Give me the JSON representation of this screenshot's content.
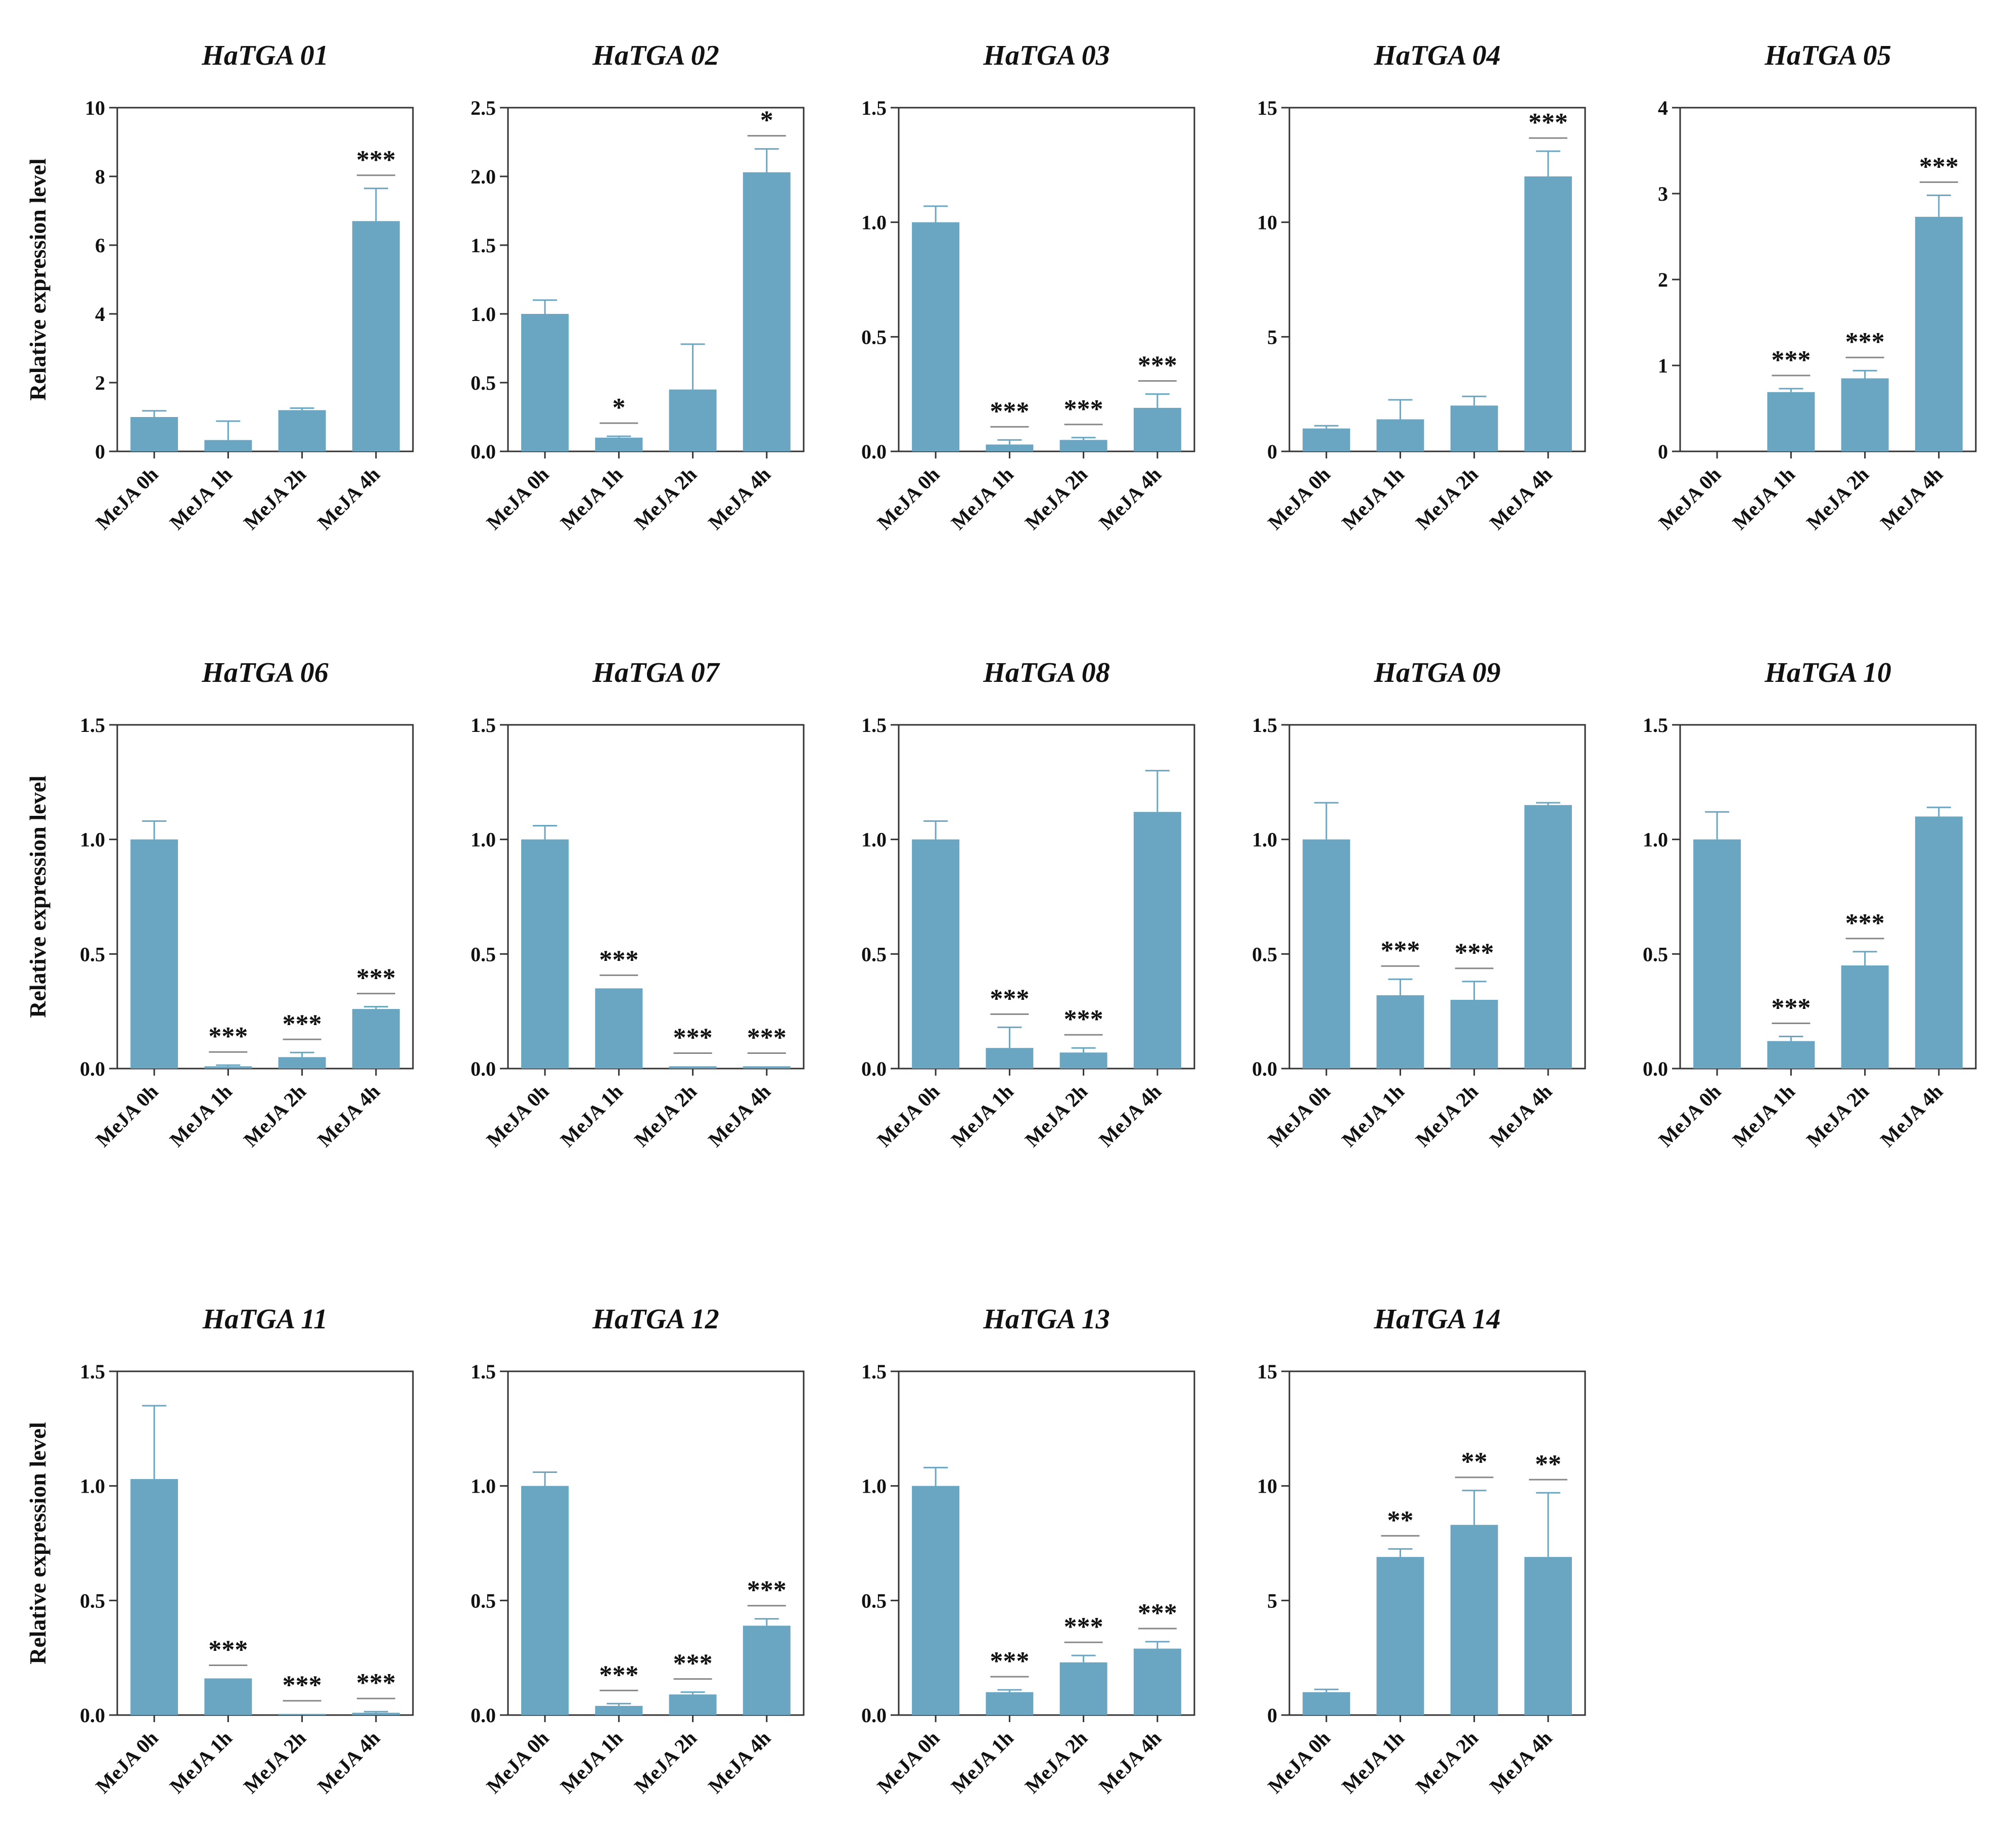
{
  "figure": {
    "y_axis_label": "Relative expression level",
    "bar_color": "#6aa6c2",
    "err_color": "#6aa6c2",
    "axis_color": "#333333",
    "sig_line_color": "#888888"
  },
  "chart_data": [
    {
      "type": "bar",
      "title": "HaTGA 01",
      "categories": [
        "MeJA 0h",
        "MeJA 1h",
        "MeJA 2h",
        "MeJA 4h"
      ],
      "values": [
        1.0,
        0.33,
        1.2,
        6.7
      ],
      "errors": [
        0.18,
        0.55,
        0.06,
        0.95
      ],
      "significance": [
        "",
        "",
        "",
        "***"
      ],
      "ylim": [
        0,
        10
      ],
      "yticks": [
        "0",
        "2",
        "4",
        "6",
        "8",
        "10"
      ]
    },
    {
      "type": "bar",
      "title": "HaTGA 02",
      "categories": [
        "MeJA 0h",
        "MeJA 1h",
        "MeJA 2h",
        "MeJA 4h"
      ],
      "values": [
        1.0,
        0.1,
        0.45,
        2.03
      ],
      "errors": [
        0.1,
        0.01,
        0.33,
        0.17
      ],
      "significance": [
        "",
        "*",
        "",
        "*"
      ],
      "ylim": [
        0,
        2.5
      ],
      "yticks": [
        "0.0",
        "0.5",
        "1.0",
        "1.5",
        "2.0",
        "2.5"
      ]
    },
    {
      "type": "bar",
      "title": "HaTGA 03",
      "categories": [
        "MeJA 0h",
        "MeJA 1h",
        "MeJA 2h",
        "MeJA 4h"
      ],
      "values": [
        1.0,
        0.03,
        0.05,
        0.19
      ],
      "errors": [
        0.07,
        0.02,
        0.01,
        0.06
      ],
      "significance": [
        "",
        "***",
        "***",
        "***"
      ],
      "ylim": [
        0,
        1.5
      ],
      "yticks": [
        "0.0",
        "0.5",
        "1.0",
        "1.5"
      ]
    },
    {
      "type": "bar",
      "title": "HaTGA 04",
      "categories": [
        "MeJA 0h",
        "MeJA 1h",
        "MeJA 2h",
        "MeJA 4h"
      ],
      "values": [
        1.0,
        1.4,
        2.0,
        12.0
      ],
      "errors": [
        0.12,
        0.85,
        0.4,
        1.1
      ],
      "significance": [
        "",
        "",
        "",
        "***"
      ],
      "ylim": [
        0,
        15
      ],
      "yticks": [
        "0",
        "5",
        "10",
        "15"
      ]
    },
    {
      "type": "bar",
      "title": "HaTGA 05",
      "categories": [
        "MeJA 0h",
        "MeJA 1h",
        "MeJA 2h",
        "MeJA 4h"
      ],
      "values": [
        0.0,
        0.69,
        0.85,
        2.73
      ],
      "errors": [
        0.0,
        0.04,
        0.09,
        0.25
      ],
      "significance": [
        "",
        "***",
        "***",
        "***"
      ],
      "ylim": [
        0,
        4
      ],
      "yticks": [
        "0",
        "1",
        "2",
        "3",
        "4"
      ]
    },
    {
      "type": "bar",
      "title": "HaTGA 06",
      "categories": [
        "MeJA 0h",
        "MeJA 1h",
        "MeJA 2h",
        "MeJA 4h"
      ],
      "values": [
        1.0,
        0.01,
        0.05,
        0.26
      ],
      "errors": [
        0.08,
        0.005,
        0.02,
        0.01
      ],
      "significance": [
        "",
        "***",
        "***",
        "***"
      ],
      "ylim": [
        0,
        1.5
      ],
      "yticks": [
        "0.0",
        "0.5",
        "1.0",
        "1.5"
      ]
    },
    {
      "type": "bar",
      "title": "HaTGA 07",
      "categories": [
        "MeJA 0h",
        "MeJA 1h",
        "MeJA 2h",
        "MeJA 4h"
      ],
      "values": [
        1.0,
        0.35,
        0.01,
        0.01
      ],
      "errors": [
        0.06,
        0.0,
        0.0,
        0.0
      ],
      "significance": [
        "",
        "***",
        "***",
        "***"
      ],
      "ylim": [
        0,
        1.5
      ],
      "yticks": [
        "0.0",
        "0.5",
        "1.0",
        "1.5"
      ]
    },
    {
      "type": "bar",
      "title": "HaTGA 08",
      "categories": [
        "MeJA 0h",
        "MeJA 1h",
        "MeJA 2h",
        "MeJA 4h"
      ],
      "values": [
        1.0,
        0.09,
        0.07,
        1.12
      ],
      "errors": [
        0.08,
        0.09,
        0.02,
        0.18
      ],
      "significance": [
        "",
        "***",
        "***",
        ""
      ],
      "ylim": [
        0,
        1.5
      ],
      "yticks": [
        "0.0",
        "0.5",
        "1.0",
        "1.5"
      ]
    },
    {
      "type": "bar",
      "title": "HaTGA 09",
      "categories": [
        "MeJA 0h",
        "MeJA 1h",
        "MeJA 2h",
        "MeJA 4h"
      ],
      "values": [
        1.0,
        0.32,
        0.3,
        1.15
      ],
      "errors": [
        0.16,
        0.07,
        0.08,
        0.01
      ],
      "significance": [
        "",
        "***",
        "***",
        ""
      ],
      "ylim": [
        0,
        1.5
      ],
      "yticks": [
        "0.0",
        "0.5",
        "1.0",
        "1.5"
      ]
    },
    {
      "type": "bar",
      "title": "HaTGA 10",
      "categories": [
        "MeJA 0h",
        "MeJA 1h",
        "MeJA 2h",
        "MeJA 4h"
      ],
      "values": [
        1.0,
        0.12,
        0.45,
        1.1
      ],
      "errors": [
        0.12,
        0.02,
        0.06,
        0.04
      ],
      "significance": [
        "",
        "***",
        "***",
        ""
      ],
      "ylim": [
        0,
        1.5
      ],
      "yticks": [
        "0.0",
        "0.5",
        "1.0",
        "1.5"
      ]
    },
    {
      "type": "bar",
      "title": "HaTGA 11",
      "categories": [
        "MeJA 0h",
        "MeJA 1h",
        "MeJA 2h",
        "MeJA 4h"
      ],
      "values": [
        1.03,
        0.16,
        0.005,
        0.01
      ],
      "errors": [
        0.32,
        0.0,
        0.0,
        0.005
      ],
      "significance": [
        "",
        "***",
        "***",
        "***"
      ],
      "ylim": [
        0,
        1.5
      ],
      "yticks": [
        "0.0",
        "0.5",
        "1.0",
        "1.5"
      ]
    },
    {
      "type": "bar",
      "title": "HaTGA 12",
      "categories": [
        "MeJA 0h",
        "MeJA 1h",
        "MeJA 2h",
        "MeJA 4h"
      ],
      "values": [
        1.0,
        0.04,
        0.09,
        0.39
      ],
      "errors": [
        0.06,
        0.01,
        0.01,
        0.03
      ],
      "significance": [
        "",
        "***",
        "***",
        "***"
      ],
      "ylim": [
        0,
        1.5
      ],
      "yticks": [
        "0.0",
        "0.5",
        "1.0",
        "1.5"
      ]
    },
    {
      "type": "bar",
      "title": "HaTGA 13",
      "categories": [
        "MeJA 0h",
        "MeJA 1h",
        "MeJA 2h",
        "MeJA 4h"
      ],
      "values": [
        1.0,
        0.1,
        0.23,
        0.29
      ],
      "errors": [
        0.08,
        0.01,
        0.03,
        0.03
      ],
      "significance": [
        "",
        "***",
        "***",
        "***"
      ],
      "ylim": [
        0,
        1.5
      ],
      "yticks": [
        "0.0",
        "0.5",
        "1.0",
        "1.5"
      ]
    },
    {
      "type": "bar",
      "title": "HaTGA 14",
      "categories": [
        "MeJA 0h",
        "MeJA 1h",
        "MeJA 2h",
        "MeJA 4h"
      ],
      "values": [
        1.0,
        6.9,
        8.3,
        6.9
      ],
      "errors": [
        0.12,
        0.35,
        1.5,
        2.8
      ],
      "significance": [
        "",
        "**",
        "**",
        "**"
      ],
      "ylim": [
        0,
        15
      ],
      "yticks": [
        "0",
        "5",
        "10",
        "15"
      ]
    }
  ]
}
